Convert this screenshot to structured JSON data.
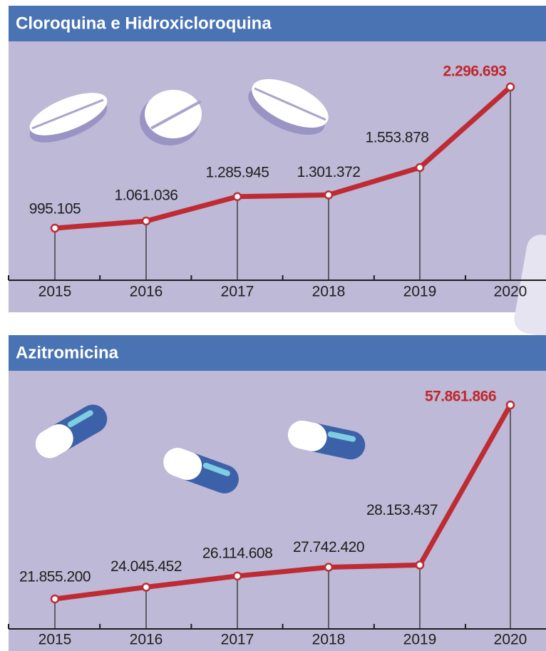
{
  "chart_data": [
    {
      "type": "line",
      "title": "Cloroquina e Hidroxicloroquina",
      "categories": [
        "2015",
        "2016",
        "2017",
        "2018",
        "2019",
        "2020"
      ],
      "series": [
        {
          "color": "#bf2b33",
          "values": [
            995105,
            1061036,
            1285945,
            1301372,
            1553878,
            2296693
          ],
          "value_labels": [
            "995.105",
            "1.061.036",
            "1.285.945",
            "1.301.372",
            "1.553.878",
            "2.296.693"
          ]
        }
      ],
      "label_color": "#1e1e1e",
      "highlight_color": "#c0272d",
      "header_color": "#4a73b3"
    },
    {
      "type": "line",
      "title": "Azitromicina",
      "categories": [
        "2015",
        "2016",
        "2017",
        "2018",
        "2019",
        "2020"
      ],
      "series": [
        {
          "color": "#bf2b33",
          "values": [
            21855200,
            24045452,
            26114608,
            27742420,
            28153437,
            57861866
          ],
          "value_labels": [
            "21.855.200",
            "24.045.452",
            "26.114.608",
            "27.742.420",
            "28.153.437",
            "57.861.866"
          ]
        }
      ],
      "label_color": "#1e1e1e",
      "highlight_color": "#c0272d",
      "header_color": "#4a73b3"
    }
  ]
}
